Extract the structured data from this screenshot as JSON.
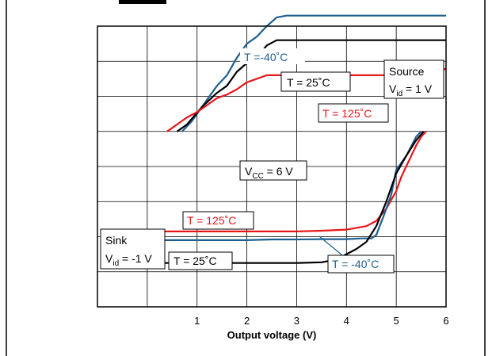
{
  "chart_data": {
    "type": "line",
    "title": "",
    "xlabel": "Output voltage (V)",
    "ylabel": "",
    "xlim": [
      -1,
      6
    ],
    "ylim": [
      0,
      8
    ],
    "x_ticks": [
      "1",
      "2",
      "3",
      "4",
      "5",
      "6"
    ],
    "grid": true,
    "colors": {
      "minus40": "#1f5f8f",
      "plus25": "#000000",
      "plus125": "#e8161b"
    },
    "series": [
      {
        "name": "T =-40°C",
        "group": "source",
        "color": "#1f5f8f",
        "x": [
          0.7,
          0.9,
          1.2,
          1.4,
          1.6,
          1.8,
          2.0,
          2.2,
          2.4,
          2.6,
          2.8,
          3.2,
          3.6,
          4.0,
          4.5,
          5.0,
          5.5,
          6.0
        ],
        "y": [
          5.0,
          5.3,
          5.9,
          6.3,
          6.6,
          7.1,
          7.5,
          7.7,
          8.0,
          8.25,
          8.3,
          8.3,
          8.3,
          8.3,
          8.3,
          8.3,
          8.3,
          8.3
        ]
      },
      {
        "name": "T = 25°C",
        "group": "source",
        "color": "#000000",
        "x": [
          0.6,
          0.8,
          1.1,
          1.4,
          1.6,
          1.8,
          2.0,
          2.2,
          2.4,
          2.6,
          3.0,
          3.5,
          4.0,
          4.5,
          5.0,
          5.5,
          6.0
        ],
        "y": [
          5.0,
          5.2,
          5.7,
          6.1,
          6.3,
          6.7,
          6.95,
          7.1,
          7.45,
          7.6,
          7.6,
          7.6,
          7.6,
          7.6,
          7.6,
          7.6,
          7.6
        ]
      },
      {
        "name": "T = 125°C",
        "group": "source",
        "color": "#e8161b",
        "x": [
          0.4,
          0.6,
          0.8,
          1.0,
          1.2,
          1.4,
          1.6,
          1.8,
          2.0,
          2.2,
          2.4,
          3.0,
          4.0,
          5.0,
          5.5,
          5.8,
          6.0
        ],
        "y": [
          5.0,
          5.2,
          5.4,
          5.55,
          5.75,
          5.95,
          6.05,
          6.2,
          6.4,
          6.5,
          6.6,
          6.6,
          6.6,
          6.6,
          6.6,
          6.6,
          6.8
        ]
      },
      {
        "name": "T = 125°C",
        "group": "sink",
        "color": "#e8161b",
        "x": [
          0.0,
          0.5,
          1.0,
          1.5,
          2.0,
          2.5,
          3.0,
          3.5,
          4.0,
          4.2,
          4.4,
          4.6,
          4.8,
          5.0,
          5.1,
          5.2,
          5.3,
          5.4,
          5.5,
          5.6
        ],
        "y": [
          2.15,
          2.15,
          2.15,
          2.15,
          2.15,
          2.15,
          2.15,
          2.17,
          2.2,
          2.25,
          2.3,
          2.45,
          2.8,
          3.3,
          3.7,
          4.0,
          4.3,
          4.6,
          4.85,
          5.0
        ]
      },
      {
        "name": "T =-40°C",
        "group": "sink",
        "color": "#1f5f8f",
        "x": [
          0.0,
          0.5,
          1.0,
          1.5,
          2.0,
          2.5,
          3.0,
          3.5,
          4.0,
          4.3,
          4.5,
          4.6,
          4.75,
          4.9,
          5.0,
          5.2,
          5.4,
          5.5
        ],
        "y": [
          1.9,
          1.9,
          1.9,
          1.9,
          1.9,
          1.92,
          1.92,
          1.93,
          1.93,
          1.95,
          1.95,
          2.05,
          2.6,
          3.2,
          3.9,
          4.3,
          4.85,
          5.0
        ]
      },
      {
        "name": "T = 25°C",
        "group": "sink",
        "color": "#000000",
        "x": [
          0.0,
          0.5,
          1.0,
          1.5,
          2.0,
          2.5,
          3.0,
          3.5,
          3.8,
          4.0,
          4.2,
          4.4,
          4.6,
          4.8,
          5.0,
          5.2,
          5.4,
          5.55
        ],
        "y": [
          1.25,
          1.25,
          1.25,
          1.25,
          1.25,
          1.25,
          1.25,
          1.27,
          1.35,
          1.5,
          1.65,
          1.85,
          2.3,
          3.0,
          3.8,
          4.3,
          4.75,
          5.0
        ]
      }
    ],
    "annotations": {
      "source_m40": "T =-40˚C",
      "source_25": "T = 25˚C",
      "source_125": "T = 125˚C",
      "source_label": "Source",
      "source_vid_pre": "V",
      "source_vid_sub": "id",
      "source_vid_val": " = 1 V",
      "vcc_pre": "V",
      "vcc_sub": "CC",
      "vcc_val": " = 6 V",
      "sink_125": "T = 125˚C",
      "sink_label": "Sink",
      "sink_vid_pre": "V",
      "sink_vid_sub": "id",
      "sink_vid_val": " = -1 V",
      "sink_25": "T = 25˚C",
      "sink_m40": "T = -40˚C"
    }
  }
}
